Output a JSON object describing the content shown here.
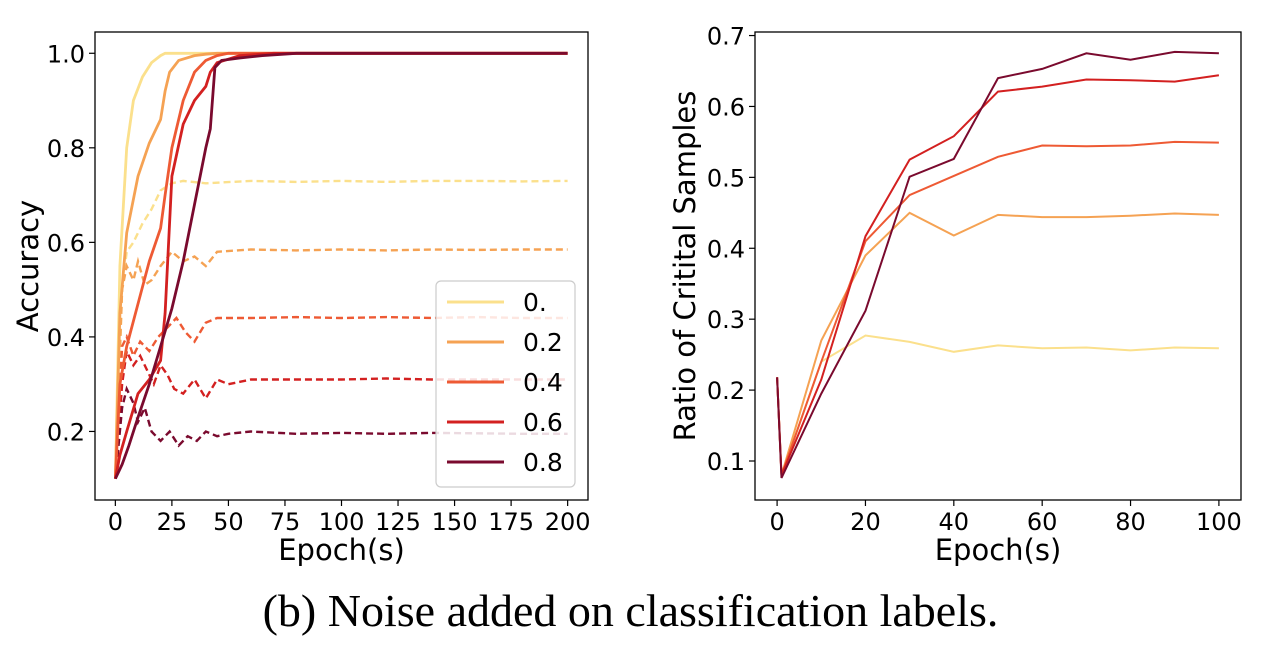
{
  "caption": "(b) Noise added on classification labels.",
  "colors": [
    "#fbe08c",
    "#f5a253",
    "#ee5a34",
    "#d32020",
    "#7a0a2e"
  ],
  "chart_data": [
    {
      "type": "line",
      "xlabel": "Epoch(s)",
      "ylabel": "Accuracy",
      "xlim": [
        -9,
        209
      ],
      "ylim": [
        0.055,
        1.045
      ],
      "xticks": [
        0,
        25,
        50,
        75,
        100,
        125,
        150,
        175,
        200
      ],
      "yticks": [
        0.2,
        0.4,
        0.6,
        0.8,
        1.0
      ],
      "ytick_labels": [
        "0.2",
        "0.4",
        "0.6",
        "0.8",
        "1.0"
      ],
      "grid": false,
      "legend_position": "lower-right",
      "legend": [
        "0.",
        "0.2",
        "0.4",
        "0.6",
        "0.8"
      ],
      "series": [
        {
          "name": "0.",
          "train": {
            "x": [
              0,
              2,
              5,
              8,
              12,
              16,
              20,
              22,
              200
            ],
            "y": [
              0.1,
              0.55,
              0.8,
              0.9,
              0.95,
              0.98,
              0.995,
              1.0,
              1.0
            ]
          },
          "test": {
            "x": [
              0,
              3,
              5,
              8,
              12,
              16,
              20,
              25,
              30,
              40,
              60,
              80,
              100,
              120,
              140,
              160,
              180,
              200
            ],
            "y": [
              0.1,
              0.5,
              0.58,
              0.6,
              0.64,
              0.67,
              0.71,
              0.725,
              0.73,
              0.725,
              0.73,
              0.728,
              0.73,
              0.728,
              0.73,
              0.73,
              0.729,
              0.73
            ]
          }
        },
        {
          "name": "0.2",
          "train": {
            "x": [
              0,
              2,
              5,
              10,
              15,
              20,
              22,
              24,
              28,
              35,
              40,
              45,
              200
            ],
            "y": [
              0.1,
              0.45,
              0.62,
              0.74,
              0.81,
              0.86,
              0.92,
              0.96,
              0.985,
              0.995,
              0.998,
              1.0,
              1.0
            ]
          },
          "test": {
            "x": [
              0,
              3,
              5,
              8,
              10,
              13,
              16,
              20,
              25,
              30,
              35,
              40,
              45,
              60,
              80,
              100,
              120,
              140,
              160,
              180,
              200
            ],
            "y": [
              0.1,
              0.5,
              0.55,
              0.52,
              0.56,
              0.51,
              0.52,
              0.55,
              0.58,
              0.56,
              0.57,
              0.55,
              0.58,
              0.585,
              0.583,
              0.585,
              0.583,
              0.585,
              0.584,
              0.585,
              0.585
            ]
          }
        },
        {
          "name": "0.4",
          "train": {
            "x": [
              0,
              2,
              5,
              10,
              15,
              20,
              22,
              25,
              30,
              35,
              40,
              45,
              50,
              200
            ],
            "y": [
              0.1,
              0.3,
              0.38,
              0.47,
              0.56,
              0.63,
              0.7,
              0.8,
              0.9,
              0.96,
              0.985,
              0.995,
              1.0,
              1.0
            ]
          },
          "test": {
            "x": [
              0,
              3,
              5,
              8,
              11,
              15,
              19,
              23,
              27,
              31,
              35,
              40,
              45,
              50,
              60,
              80,
              100,
              120,
              140,
              160,
              180,
              200
            ],
            "y": [
              0.1,
              0.38,
              0.4,
              0.36,
              0.39,
              0.37,
              0.4,
              0.42,
              0.44,
              0.41,
              0.39,
              0.43,
              0.44,
              0.44,
              0.44,
              0.442,
              0.44,
              0.442,
              0.44,
              0.442,
              0.44,
              0.44
            ]
          }
        },
        {
          "name": "0.6",
          "train": {
            "x": [
              0,
              2,
              5,
              10,
              15,
              20,
              22,
              25,
              30,
              35,
              40,
              42,
              45,
              55,
              70,
              200
            ],
            "y": [
              0.1,
              0.15,
              0.2,
              0.28,
              0.31,
              0.35,
              0.45,
              0.74,
              0.85,
              0.9,
              0.93,
              0.96,
              0.98,
              0.995,
              1.0,
              1.0
            ]
          },
          "test": {
            "x": [
              0,
              3,
              5,
              8,
              11,
              14,
              17,
              20,
              23,
              26,
              30,
              35,
              40,
              45,
              50,
              60,
              80,
              100,
              120,
              140,
              160,
              180,
              200
            ],
            "y": [
              0.1,
              0.3,
              0.37,
              0.34,
              0.36,
              0.33,
              0.3,
              0.34,
              0.32,
              0.29,
              0.28,
              0.31,
              0.27,
              0.31,
              0.3,
              0.31,
              0.31,
              0.31,
              0.312,
              0.31,
              0.31,
              0.31,
              0.31
            ]
          }
        },
        {
          "name": "0.8",
          "train": {
            "x": [
              0,
              3,
              6,
              10,
              15,
              20,
              25,
              30,
              35,
              40,
              42,
              44,
              47,
              55,
              65,
              80,
              200
            ],
            "y": [
              0.1,
              0.13,
              0.17,
              0.23,
              0.3,
              0.38,
              0.46,
              0.56,
              0.68,
              0.8,
              0.84,
              0.97,
              0.985,
              0.99,
              0.995,
              1.0,
              1.0
            ]
          },
          "test": {
            "x": [
              0,
              3,
              5,
              8,
              10,
              13,
              16,
              20,
              24,
              28,
              32,
              36,
              40,
              45,
              50,
              60,
              80,
              100,
              120,
              140,
              160,
              180,
              200
            ],
            "y": [
              0.1,
              0.25,
              0.29,
              0.26,
              0.22,
              0.25,
              0.2,
              0.18,
              0.2,
              0.17,
              0.19,
              0.18,
              0.2,
              0.19,
              0.195,
              0.2,
              0.195,
              0.197,
              0.195,
              0.197,
              0.196,
              0.195,
              0.195
            ]
          }
        }
      ]
    },
    {
      "type": "line",
      "xlabel": "Epoch(s)",
      "ylabel": "Ratio of Critital Samples",
      "xlim": [
        -5,
        105
      ],
      "ylim": [
        0.045,
        0.705
      ],
      "xticks": [
        0,
        20,
        40,
        60,
        80,
        100
      ],
      "yticks": [
        0.1,
        0.2,
        0.3,
        0.4,
        0.5,
        0.6,
        0.7
      ],
      "ytick_labels": [
        "0.1",
        "0.2",
        "0.3",
        "0.4",
        "0.5",
        "0.6",
        "0.7"
      ],
      "grid": false,
      "x": [
        0,
        1,
        10,
        20,
        30,
        40,
        50,
        60,
        70,
        80,
        90,
        100
      ],
      "series": [
        {
          "name": "0.",
          "values": [
            0.218,
            0.08,
            0.24,
            0.277,
            0.268,
            0.254,
            0.263,
            0.259,
            0.26,
            0.256,
            0.26,
            0.259
          ]
        },
        {
          "name": "0.2",
          "values": [
            0.218,
            0.08,
            0.27,
            0.39,
            0.45,
            0.418,
            0.447,
            0.444,
            0.444,
            0.446,
            0.449,
            0.447
          ]
        },
        {
          "name": "0.4",
          "values": [
            0.218,
            0.08,
            0.24,
            0.41,
            0.475,
            0.502,
            0.529,
            0.545,
            0.544,
            0.545,
            0.55,
            0.549
          ]
        },
        {
          "name": "0.6",
          "values": [
            0.218,
            0.08,
            0.215,
            0.417,
            0.525,
            0.558,
            0.621,
            0.628,
            0.638,
            0.637,
            0.635,
            0.644
          ]
        },
        {
          "name": "0.8",
          "values": [
            0.218,
            0.076,
            0.195,
            0.312,
            0.501,
            0.526,
            0.64,
            0.653,
            0.675,
            0.666,
            0.677,
            0.675
          ]
        }
      ]
    }
  ]
}
